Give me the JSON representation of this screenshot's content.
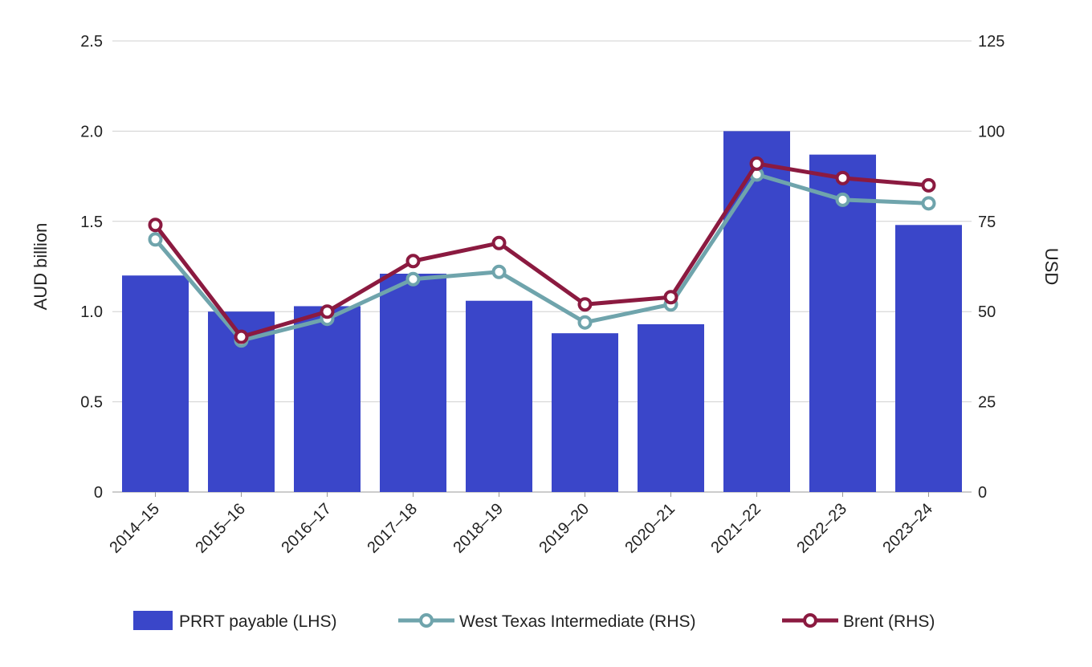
{
  "chart_data": {
    "type": "bar",
    "categories": [
      "2014–15",
      "2015–16",
      "2016–17",
      "2017–18",
      "2018–19",
      "2019–20",
      "2020–21",
      "2021–22",
      "2022–23",
      "2023–24"
    ],
    "series": [
      {
        "name": "PRRT payable (LHS)",
        "type": "bar",
        "axis": "left",
        "color": "#3a46c9",
        "values": [
          1.2,
          1.0,
          1.03,
          1.21,
          1.06,
          0.88,
          0.93,
          2.0,
          1.87,
          1.48
        ]
      },
      {
        "name": "West Texas Intermediate (RHS)",
        "type": "line",
        "axis": "right",
        "color": "#6fa4ac",
        "values": [
          70,
          42,
          48,
          59,
          61,
          47,
          52,
          88,
          81,
          80
        ]
      },
      {
        "name": "Brent (RHS)",
        "type": "line",
        "axis": "right",
        "color": "#8b1a40",
        "values": [
          74,
          43,
          50,
          64,
          69,
          52,
          54,
          91,
          87,
          85
        ]
      }
    ],
    "ylabel": "AUD billion",
    "ylabel_right": "USD",
    "ylim": [
      0,
      2.5
    ],
    "ylim_right": [
      0,
      125
    ],
    "yticks": [
      "0",
      "0.5",
      "1.0",
      "1.5",
      "2.0",
      "2.5"
    ],
    "yticks_right": [
      "0",
      "25",
      "50",
      "75",
      "100",
      "125"
    ],
    "grid": true,
    "legend_position": "bottom"
  }
}
